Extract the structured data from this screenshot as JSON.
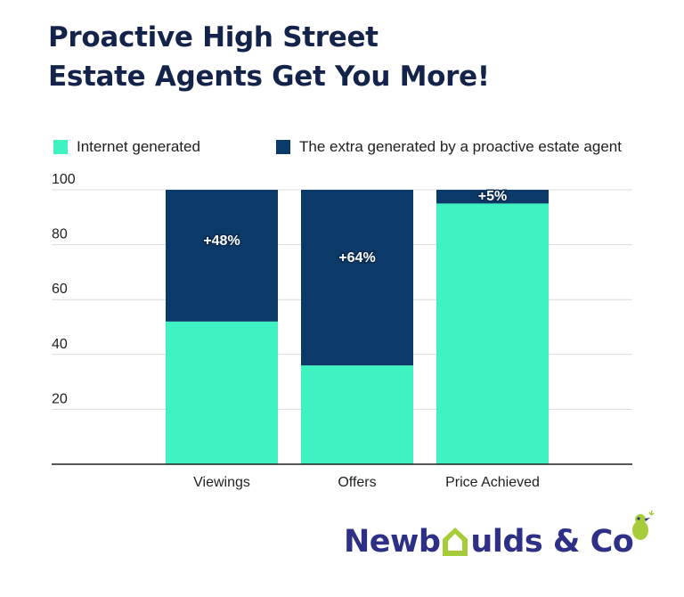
{
  "title": {
    "line1": "Proactive High Street",
    "line2": "Estate Agents Get You More!"
  },
  "legend": [
    {
      "label": "Internet generated",
      "color": "#3ef2c2"
    },
    {
      "label": "The extra generated by a proactive estate agent",
      "color": "#0b3a68"
    }
  ],
  "colors": {
    "internet": "#3ef2c2",
    "extra": "#0b3a68",
    "grid": "#dcdcdc",
    "axis": "#1f1f1f",
    "title": "#13234a",
    "logo": "#2e2f86",
    "logo_accent": "#a7cc3a"
  },
  "chart_data": {
    "type": "bar",
    "stacked": true,
    "categories": [
      "Viewings",
      "Offers",
      "Price Achieved"
    ],
    "series": [
      {
        "name": "Internet generated",
        "values": [
          52,
          36,
          95
        ]
      },
      {
        "name": "The extra generated by a proactive estate agent",
        "values": [
          48,
          64,
          5
        ]
      }
    ],
    "data_labels": [
      "+48%",
      "+64%",
      "+5%"
    ],
    "yticks": [
      20,
      40,
      60,
      80,
      100
    ],
    "ylim": [
      0,
      100
    ],
    "title": "Proactive High Street Estate Agents Get You More!",
    "xlabel": "",
    "ylabel": "",
    "grid": true,
    "legend_position": "top"
  },
  "logo": {
    "text_before": "Newb",
    "text_after": "ulds & Co",
    "icon": "house-icon",
    "accent_icon": "bird-icon"
  }
}
